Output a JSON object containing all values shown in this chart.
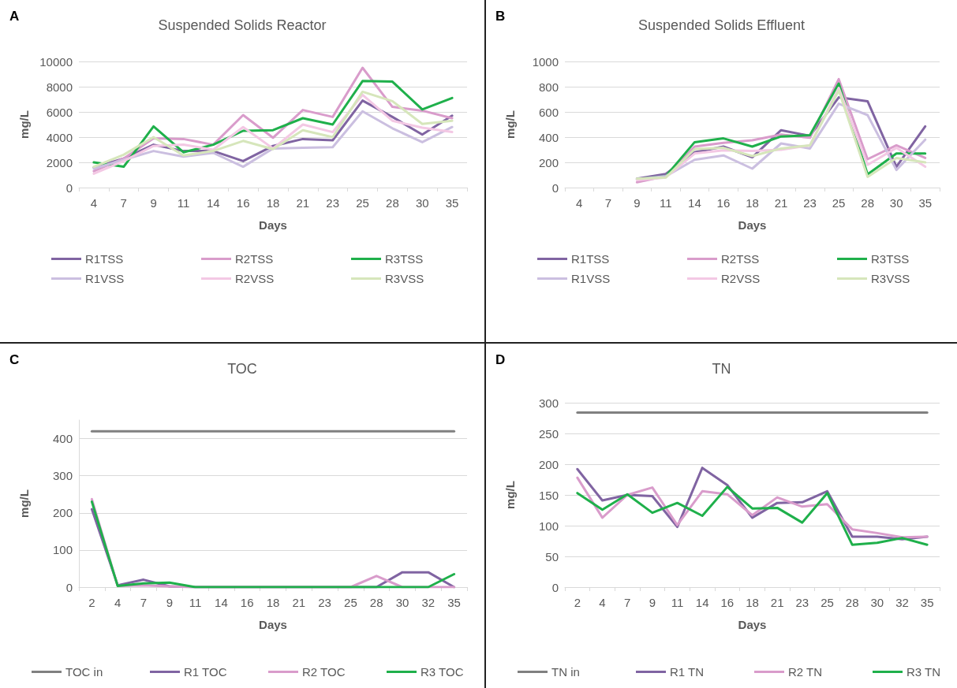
{
  "chart_data": [
    {
      "type": "line",
      "title": "Suspended Solids Reactor",
      "xlabel": "Days",
      "ylabel": "mg/L",
      "annotations": [
        "A"
      ],
      "categories": [
        "4",
        "7",
        "9",
        "11",
        "14",
        "16",
        "18",
        "21",
        "23",
        "25",
        "28",
        "30",
        "35"
      ],
      "ylim": [
        0,
        10000
      ],
      "yticks": [
        0,
        2000,
        4000,
        6000,
        8000,
        10000
      ],
      "grid": "y",
      "legend": "bottom",
      "marker": "none",
      "line_style": "solid",
      "series": [
        {
          "name": "R1TSS",
          "color": "#8064a2",
          "values": [
            1600,
            2300,
            3400,
            2900,
            2900,
            2100,
            3300,
            3850,
            3750,
            6900,
            5600,
            4200,
            5700
          ]
        },
        {
          "name": "R2TSS",
          "color": "#d99ccb",
          "values": [
            1300,
            2300,
            3900,
            3850,
            3400,
            5750,
            3950,
            6150,
            5600,
            9500,
            6400,
            6100,
            5500
          ]
        },
        {
          "name": "R3TSS",
          "color": "#1fb04b",
          "values": [
            2000,
            1650,
            4850,
            2800,
            3400,
            4500,
            4550,
            5500,
            5000,
            8450,
            8400,
            6200,
            7100
          ]
        },
        {
          "name": "R1VSS",
          "color": "#cbbfe0",
          "values": [
            1500,
            2200,
            2900,
            2450,
            2750,
            1650,
            3100,
            3150,
            3200,
            6050,
            4700,
            3600,
            4800
          ]
        },
        {
          "name": "R2VSS",
          "color": "#f3c8e4",
          "values": [
            1100,
            2100,
            3300,
            3400,
            3000,
            4800,
            3100,
            5000,
            4400,
            7350,
            5300,
            4750,
            4400
          ]
        },
        {
          "name": "R3VSS",
          "color": "#d6e6bb",
          "values": [
            1650,
            2600,
            4000,
            2550,
            2900,
            3700,
            3050,
            4550,
            4000,
            7600,
            6850,
            5050,
            5300
          ]
        }
      ]
    },
    {
      "type": "line",
      "title": "Suspended Solids Effluent",
      "xlabel": "Days",
      "ylabel": "mg/L",
      "annotations": [
        "B"
      ],
      "categories": [
        "4",
        "7",
        "9",
        "11",
        "14",
        "16",
        "18",
        "21",
        "23",
        "25",
        "28",
        "30",
        "35"
      ],
      "ylim": [
        0,
        1000
      ],
      "yticks": [
        0,
        200,
        400,
        600,
        800,
        1000
      ],
      "grid": "y",
      "legend": "bottom",
      "marker": "none",
      "line_style": "solid",
      "series": [
        {
          "name": "R1TSS",
          "color": "#8064a2",
          "values": [
            null,
            null,
            70,
            108,
            280,
            325,
            240,
            455,
            410,
            715,
            685,
            165,
            485
          ]
        },
        {
          "name": "R2TSS",
          "color": "#d99ccb",
          "values": [
            null,
            null,
            42,
            90,
            325,
            355,
            375,
            420,
            395,
            860,
            225,
            335,
            235
          ]
        },
        {
          "name": "R3TSS",
          "color": "#1fb04b",
          "values": [
            null,
            null,
            65,
            90,
            360,
            390,
            325,
            405,
            415,
            825,
            105,
            270,
            270
          ]
        },
        {
          "name": "R1VSS",
          "color": "#cbbfe0",
          "values": [
            null,
            null,
            65,
            90,
            220,
            255,
            150,
            350,
            310,
            665,
            575,
            140,
            380
          ]
        },
        {
          "name": "R2VSS",
          "color": "#f3c8e4",
          "values": [
            null,
            null,
            60,
            80,
            270,
            295,
            290,
            300,
            335,
            790,
            180,
            315,
            165
          ]
        },
        {
          "name": "R3VSS",
          "color": "#d6e6bb",
          "values": [
            null,
            null,
            70,
            80,
            305,
            315,
            250,
            310,
            335,
            770,
            85,
            235,
            200
          ]
        }
      ]
    },
    {
      "type": "line",
      "title": "TOC",
      "xlabel": "Days",
      "ylabel": "mg/L",
      "annotations": [
        "C"
      ],
      "categories": [
        "2",
        "4",
        "7",
        "9",
        "11",
        "14",
        "16",
        "18",
        "21",
        "23",
        "25",
        "28",
        "30",
        "32",
        "35"
      ],
      "ylim": [
        0,
        450
      ],
      "yticks": [
        0,
        100,
        200,
        300,
        400
      ],
      "grid": "y",
      "legend": "bottom",
      "marker": "none",
      "line_style": "solid",
      "series": [
        {
          "name": "TOC in",
          "color": "#808080",
          "values": [
            420,
            420,
            420,
            420,
            420,
            420,
            420,
            420,
            420,
            420,
            420,
            420,
            420,
            420,
            420
          ]
        },
        {
          "name": "R1 TOC",
          "color": "#8064a2",
          "values": [
            210,
            5,
            20,
            2,
            0,
            0,
            0,
            0,
            0,
            0,
            0,
            0,
            40,
            40,
            0
          ]
        },
        {
          "name": "R2 TOC",
          "color": "#d99ccb",
          "values": [
            237,
            3,
            5,
            2,
            0,
            0,
            0,
            0,
            0,
            0,
            0,
            30,
            0,
            0,
            0
          ]
        },
        {
          "name": "R3 TOC",
          "color": "#1fb04b",
          "values": [
            230,
            3,
            10,
            12,
            0,
            0,
            0,
            0,
            0,
            0,
            0,
            0,
            0,
            0,
            35
          ]
        }
      ]
    },
    {
      "type": "line",
      "title": "TN",
      "xlabel": "Days",
      "ylabel": "mg/L",
      "annotations": [
        "D"
      ],
      "categories": [
        "2",
        "4",
        "7",
        "9",
        "11",
        "14",
        "16",
        "18",
        "21",
        "23",
        "25",
        "28",
        "30",
        "32",
        "35"
      ],
      "ylim": [
        0,
        300
      ],
      "yticks": [
        0,
        50,
        100,
        150,
        200,
        250,
        300
      ],
      "grid": "y",
      "legend": "bottom",
      "marker": "none",
      "line_style": "solid",
      "series": [
        {
          "name": "TN in",
          "color": "#808080",
          "values": [
            284,
            284,
            284,
            284,
            284,
            284,
            284,
            284,
            284,
            284,
            284,
            284,
            284,
            284,
            284
          ]
        },
        {
          "name": "R1 TN",
          "color": "#8064a2",
          "values": [
            192,
            141,
            150,
            148,
            98,
            194,
            166,
            113,
            137,
            138,
            156,
            82,
            82,
            78,
            82
          ]
        },
        {
          "name": "R2 TN",
          "color": "#d99ccb",
          "values": [
            178,
            113,
            150,
            162,
            101,
            156,
            151,
            117,
            146,
            131,
            135,
            94,
            88,
            81,
            82
          ]
        },
        {
          "name": "R3 TN",
          "color": "#1fb04b",
          "values": [
            153,
            126,
            151,
            121,
            137,
            116,
            163,
            128,
            129,
            105,
            153,
            69,
            72,
            80,
            69
          ]
        }
      ]
    }
  ]
}
